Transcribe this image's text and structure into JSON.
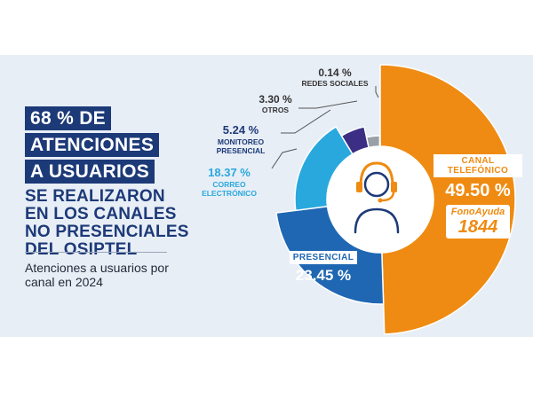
{
  "headline": {
    "boxed_lines": [
      "68 % DE",
      "ATENCIONES",
      "A USUARIOS"
    ],
    "plain_lines": [
      "SE REALIZARON",
      "EN LOS CANALES",
      "NO PRESENCIALES",
      "DEL OSIPTEL"
    ]
  },
  "subtitle": "Atenciones a usuarios por canal en 2024",
  "colors": {
    "canal_telefonico": "#ef8b12",
    "presencial": "#1f67b3",
    "correo_electronico": "#29a8de",
    "monitoreo_presencial": "#3b2e84",
    "otros": "#9aa0a8",
    "redes_sociales": "#5a5a5a",
    "navy": "#1d3a78"
  },
  "chart_data": {
    "type": "pie",
    "title": "Atenciones a usuarios por canal en 2024",
    "series": [
      {
        "name": "CANAL TELEFÓNICO",
        "value": 49.5,
        "label": "49.50 %",
        "extra": [
          "FonoAyuda",
          "1844"
        ]
      },
      {
        "name": "PRESENCIAL",
        "value": 23.45,
        "label": "23.45 %"
      },
      {
        "name": "CORREO ELECTRÓNICO",
        "value": 18.37,
        "label": "18.37 %"
      },
      {
        "name": "MONITOREO PRESENCIAL",
        "value": 5.24,
        "label": "5.24 %"
      },
      {
        "name": "OTROS",
        "value": 3.3,
        "label": "3.30 %"
      },
      {
        "name": "REDES SOCIALES",
        "value": 0.14,
        "label": "0.14 %"
      }
    ]
  }
}
